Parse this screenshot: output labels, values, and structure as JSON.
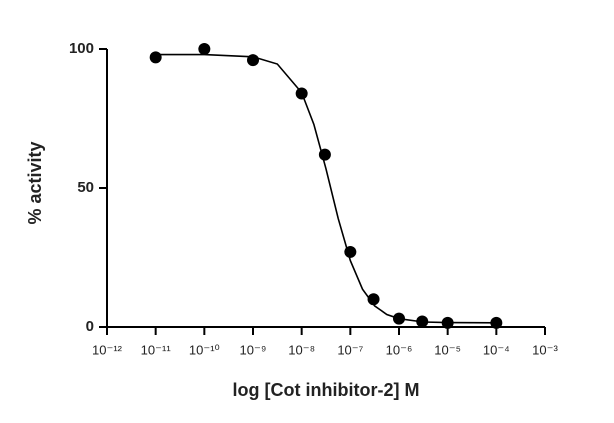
{
  "chart_data": {
    "type": "dose-response",
    "xlabel": "log [Cot inhibitor-2] M",
    "ylabel": "% activity",
    "xscale": "log",
    "xlim": [
      1e-12,
      0.001
    ],
    "xticks": [
      {
        "value": 1e-12,
        "label": "10⁻¹²"
      },
      {
        "value": 1e-11,
        "label": "10⁻¹¹"
      },
      {
        "value": 1e-10,
        "label": "10⁻¹⁰"
      },
      {
        "value": 1e-09,
        "label": "10⁻⁹"
      },
      {
        "value": 1e-08,
        "label": "10⁻⁸"
      },
      {
        "value": 1e-07,
        "label": "10⁻⁷"
      },
      {
        "value": 1e-06,
        "label": "10⁻⁶"
      },
      {
        "value": 1e-05,
        "label": "10⁻⁵"
      },
      {
        "value": 0.0001,
        "label": "10⁻⁴"
      },
      {
        "value": 0.001,
        "label": "10⁻³"
      }
    ],
    "ylim": [
      0,
      100
    ],
    "yticks": [
      0,
      50,
      100
    ],
    "color": "#000000",
    "points": {
      "x": [
        1e-11,
        1e-10,
        1e-09,
        1e-08,
        3e-08,
        1e-07,
        3e-07,
        1e-06,
        3e-06,
        1e-05,
        0.0001
      ],
      "values": [
        97,
        100,
        96,
        84,
        62,
        27,
        10,
        3,
        2,
        1.5,
        1.5
      ]
    },
    "curve": {
      "x": [
        1e-11,
        1e-10,
        1e-09,
        3.16e-09,
        1e-08,
        1.78e-08,
        3.16e-08,
        5.62e-08,
        1e-07,
        1.78e-07,
        3.16e-07,
        5.62e-07,
        1e-06,
        3.16e-06,
        1e-05,
        0.0001
      ],
      "values": [
        98,
        98,
        97.2,
        94.6,
        84.3,
        72.9,
        56.9,
        39.1,
        23.9,
        13.6,
        7.6,
        4.5,
        3,
        1.8,
        1.6,
        1.5
      ]
    }
  }
}
